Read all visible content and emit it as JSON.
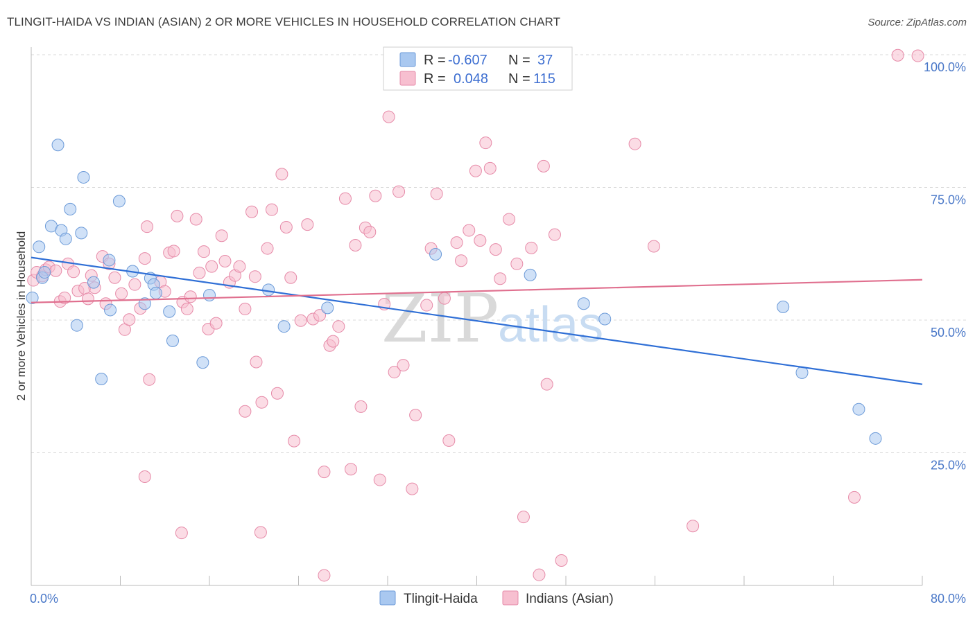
{
  "title": "TLINGIT-HAIDA VS INDIAN (ASIAN) 2 OR MORE VEHICLES IN HOUSEHOLD CORRELATION CHART",
  "source": "Source: ZipAtlas.com",
  "watermark": {
    "zip": "ZIP",
    "atlas": "atlas"
  },
  "legend": {
    "r_label": "R =",
    "n_label": "N =",
    "rows": [
      {
        "r": "-0.607",
        "n": "37",
        "color": "#a9c8f0",
        "border": "#6b9ad8"
      },
      {
        "r": "0.048",
        "n": "115",
        "color": "#f7bfd0",
        "border": "#e68aa8"
      }
    ]
  },
  "bottom_legend": [
    {
      "label": "Tlingit-Haida",
      "color": "#a9c8f0",
      "border": "#6b9ad8"
    },
    {
      "label": "Indians (Asian)",
      "color": "#f7bfd0",
      "border": "#e68aa8"
    }
  ],
  "chart_data": {
    "type": "scatter",
    "title": "TLINGIT-HAIDA VS INDIAN (ASIAN) 2 OR MORE VEHICLES IN HOUSEHOLD CORRELATION CHART",
    "xlabel": "",
    "ylabel": "2 or more Vehicles in Household",
    "xlim": [
      0,
      80
    ],
    "ylim": [
      0,
      100
    ],
    "x_tick_labels": [
      "0.0%",
      "80.0%"
    ],
    "y_tick_labels": [
      "25.0%",
      "50.0%",
      "75.0%",
      "100.0%"
    ],
    "y_ticks": [
      25,
      50,
      75,
      100
    ],
    "grid": true,
    "legend_position": "top-center",
    "series": [
      {
        "name": "Tlingit-Haida",
        "color": "#a9c8f0",
        "edge": "#6b9ad8",
        "trend": {
          "x": [
            0,
            80
          ],
          "y": [
            61.8,
            37.9
          ],
          "color": "#2f6fd6"
        },
        "points": [
          [
            0.1,
            54.2
          ],
          [
            0.7,
            63.8
          ],
          [
            1.0,
            58.0
          ],
          [
            1.2,
            59.0
          ],
          [
            1.8,
            67.7
          ],
          [
            2.4,
            83.0
          ],
          [
            2.7,
            66.9
          ],
          [
            3.1,
            65.3
          ],
          [
            3.5,
            70.9
          ],
          [
            4.1,
            49.0
          ],
          [
            4.5,
            66.4
          ],
          [
            4.7,
            76.9
          ],
          [
            5.6,
            57.1
          ],
          [
            6.3,
            38.9
          ],
          [
            7.0,
            61.3
          ],
          [
            7.1,
            51.9
          ],
          [
            7.9,
            72.4
          ],
          [
            9.1,
            59.2
          ],
          [
            10.2,
            53.1
          ],
          [
            10.7,
            57.9
          ],
          [
            11.0,
            56.7
          ],
          [
            11.2,
            55.1
          ],
          [
            12.4,
            51.6
          ],
          [
            12.7,
            46.1
          ],
          [
            15.4,
            42.0
          ],
          [
            16.0,
            54.7
          ],
          [
            21.3,
            55.7
          ],
          [
            22.7,
            48.8
          ],
          [
            26.6,
            52.3
          ],
          [
            36.3,
            62.4
          ],
          [
            44.8,
            58.5
          ],
          [
            49.6,
            53.1
          ],
          [
            51.5,
            50.2
          ],
          [
            67.5,
            52.5
          ],
          [
            69.2,
            40.1
          ],
          [
            74.3,
            33.2
          ],
          [
            75.8,
            27.7
          ]
        ]
      },
      {
        "name": "Indians (Asian)",
        "color": "#f7bfd0",
        "edge": "#e68aa8",
        "trend": {
          "x": [
            0,
            80
          ],
          "y": [
            53.3,
            57.6
          ],
          "color": "#e0708f"
        },
        "points": [
          [
            0.2,
            57.5
          ],
          [
            0.5,
            59.0
          ],
          [
            1.0,
            58.3
          ],
          [
            1.3,
            59.5
          ],
          [
            1.6,
            60.0
          ],
          [
            2.2,
            59.3
          ],
          [
            2.6,
            53.5
          ],
          [
            3.0,
            54.2
          ],
          [
            3.3,
            60.6
          ],
          [
            3.8,
            59.1
          ],
          [
            4.2,
            55.5
          ],
          [
            4.8,
            56.0
          ],
          [
            5.1,
            54.0
          ],
          [
            5.4,
            58.4
          ],
          [
            5.7,
            56.1
          ],
          [
            6.4,
            62.0
          ],
          [
            6.7,
            53.1
          ],
          [
            7.0,
            60.6
          ],
          [
            7.5,
            58.0
          ],
          [
            8.1,
            55.0
          ],
          [
            8.4,
            48.2
          ],
          [
            8.8,
            50.1
          ],
          [
            9.3,
            56.7
          ],
          [
            9.8,
            52.2
          ],
          [
            10.2,
            61.6
          ],
          [
            10.4,
            67.6
          ],
          [
            10.6,
            38.8
          ],
          [
            11.6,
            57.2
          ],
          [
            12.0,
            55.4
          ],
          [
            12.4,
            62.7
          ],
          [
            12.8,
            63.0
          ],
          [
            13.1,
            69.6
          ],
          [
            13.6,
            53.4
          ],
          [
            14.0,
            52.1
          ],
          [
            14.3,
            54.4
          ],
          [
            14.8,
            69.0
          ],
          [
            15.1,
            58.9
          ],
          [
            15.5,
            62.9
          ],
          [
            15.9,
            48.3
          ],
          [
            16.2,
            60.1
          ],
          [
            16.6,
            49.4
          ],
          [
            17.1,
            65.9
          ],
          [
            17.4,
            61.1
          ],
          [
            17.8,
            57.1
          ],
          [
            18.3,
            58.4
          ],
          [
            18.7,
            60.1
          ],
          [
            19.2,
            52.1
          ],
          [
            19.8,
            70.4
          ],
          [
            20.2,
            42.1
          ],
          [
            20.7,
            34.5
          ],
          [
            21.2,
            63.5
          ],
          [
            21.6,
            70.8
          ],
          [
            22.1,
            36.2
          ],
          [
            22.5,
            77.5
          ],
          [
            22.9,
            67.5
          ],
          [
            23.3,
            58.0
          ],
          [
            23.6,
            27.2
          ],
          [
            24.2,
            49.9
          ],
          [
            24.8,
            68.0
          ],
          [
            25.3,
            50.2
          ],
          [
            25.9,
            50.9
          ],
          [
            26.3,
            21.4
          ],
          [
            26.8,
            45.2
          ],
          [
            27.1,
            46.0
          ],
          [
            27.6,
            48.8
          ],
          [
            28.2,
            72.9
          ],
          [
            28.7,
            21.9
          ],
          [
            29.1,
            64.1
          ],
          [
            29.6,
            33.7
          ],
          [
            30.0,
            67.4
          ],
          [
            30.4,
            66.6
          ],
          [
            30.9,
            73.4
          ],
          [
            31.3,
            19.9
          ],
          [
            31.7,
            53.0
          ],
          [
            32.1,
            88.3
          ],
          [
            32.6,
            40.2
          ],
          [
            33.0,
            74.2
          ],
          [
            33.4,
            41.5
          ],
          [
            34.2,
            18.2
          ],
          [
            34.5,
            32.1
          ],
          [
            35.5,
            52.8
          ],
          [
            35.9,
            63.5
          ],
          [
            36.4,
            73.8
          ],
          [
            37.1,
            54.1
          ],
          [
            37.5,
            27.3
          ],
          [
            38.2,
            64.6
          ],
          [
            38.6,
            61.2
          ],
          [
            39.3,
            66.9
          ],
          [
            39.9,
            78.1
          ],
          [
            40.3,
            65.0
          ],
          [
            40.8,
            83.4
          ],
          [
            41.2,
            78.6
          ],
          [
            41.7,
            63.3
          ],
          [
            42.1,
            57.8
          ],
          [
            42.9,
            69.0
          ],
          [
            43.6,
            60.6
          ],
          [
            44.2,
            12.9
          ],
          [
            44.9,
            63.6
          ],
          [
            45.6,
            2.0
          ],
          [
            46.0,
            79.0
          ],
          [
            46.3,
            37.9
          ],
          [
            47.0,
            66.1
          ],
          [
            47.6,
            4.7
          ],
          [
            10.2,
            20.5
          ],
          [
            13.5,
            9.9
          ],
          [
            19.2,
            32.8
          ],
          [
            20.6,
            10.0
          ],
          [
            26.3,
            1.9
          ],
          [
            54.2,
            83.2
          ],
          [
            55.9,
            63.9
          ],
          [
            59.4,
            11.2
          ],
          [
            73.9,
            16.6
          ],
          [
            77.8,
            99.9
          ],
          [
            79.6,
            99.8
          ],
          [
            20.1,
            58.2
          ]
        ]
      }
    ]
  }
}
